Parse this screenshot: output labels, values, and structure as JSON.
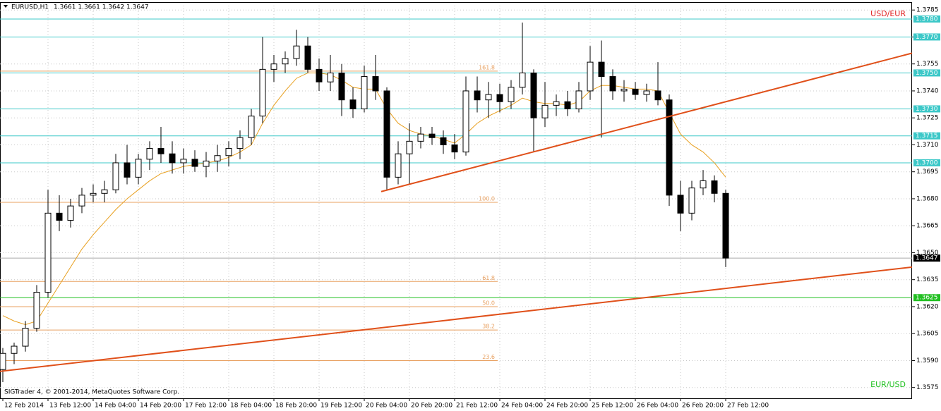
{
  "chart_data": {
    "type": "candlestick",
    "symbol": "EURUSD,H1",
    "ohlc_text": "1.3661 1.3661 1.3642 1.3647",
    "top_right_label": "USD/EUR",
    "bottom_right_label": "EUR/USD",
    "copyright": "SIGTrader 4, © 2001-2014, MetaQuotes Software Corp.",
    "grid": true,
    "xlim": [
      -1,
      322
    ],
    "ylim": [
      1.3569,
      1.3789
    ],
    "xticks": [
      {
        "value": 0,
        "label": "12 Feb 2014"
      },
      {
        "value": 16,
        "label": "13 Feb 12:00"
      },
      {
        "value": 32,
        "label": "14 Feb 04:00"
      },
      {
        "value": 48,
        "label": "14 Feb 20:00"
      },
      {
        "value": 64,
        "label": "17 Feb 12:00"
      },
      {
        "value": 80,
        "label": "18 Feb 04:00"
      },
      {
        "value": 96,
        "label": "18 Feb 20:00"
      },
      {
        "value": 112,
        "label": "19 Feb 12:00"
      },
      {
        "value": 128,
        "label": "20 Feb 04:00"
      },
      {
        "value": 144,
        "label": "20 Feb 20:00"
      },
      {
        "value": 160,
        "label": "21 Feb 12:00"
      },
      {
        "value": 176,
        "label": "24 Feb 04:00"
      },
      {
        "value": 192,
        "label": "24 Feb 20:00"
      },
      {
        "value": 208,
        "label": "25 Feb 12:00"
      },
      {
        "value": 224,
        "label": "26 Feb 04:00"
      },
      {
        "value": 240,
        "label": "26 Feb 20:00"
      },
      {
        "value": 256,
        "label": "27 Feb 12:00"
      }
    ],
    "yticks": [
      1.3785,
      {
        "value": 1.377,
        "label": "1.3770"
      },
      1.3755,
      {
        "value": 1.374,
        "label": "1.3740"
      },
      1.3725,
      {
        "value": 1.371,
        "label": "1.3710"
      },
      1.3695,
      {
        "value": 1.368,
        "label": "1.3680"
      },
      1.3665,
      {
        "value": 1.365,
        "label": "1.3650"
      },
      1.3635,
      {
        "value": 1.362,
        "label": "1.3620"
      },
      1.3605,
      {
        "value": 1.359,
        "label": "1.3590"
      },
      1.3575
    ],
    "x": [
      0,
      4,
      8,
      12,
      16,
      20,
      24,
      28,
      32,
      36,
      40,
      44,
      48,
      52,
      56,
      60,
      64,
      68,
      72,
      76,
      80,
      84,
      88,
      92,
      96,
      100,
      104,
      108,
      112,
      116,
      120,
      124,
      128,
      132,
      136,
      140,
      144,
      148,
      152,
      156,
      160,
      164,
      168,
      172,
      176,
      180,
      184,
      188,
      192,
      196,
      200,
      204,
      208,
      212,
      216,
      220,
      224,
      228,
      232,
      236,
      240,
      244,
      248,
      252,
      256
    ],
    "open": [
      1.3585,
      1.3594,
      1.3598,
      1.3608,
      1.3628,
      1.3672,
      1.3668,
      1.3676,
      1.3682,
      1.3683,
      1.3685,
      1.37,
      1.3692,
      1.3702,
      1.3708,
      1.3705,
      1.37,
      1.3702,
      1.3698,
      1.3701,
      1.3704,
      1.3708,
      1.3714,
      1.3726,
      1.3752,
      1.3755,
      1.3758,
      1.3765,
      1.3752,
      1.3745,
      1.375,
      1.3735,
      1.373,
      1.3748,
      1.374,
      1.3692,
      1.3705,
      1.3712,
      1.3716,
      1.3714,
      1.371,
      1.3706,
      1.374,
      1.3735,
      1.3738,
      1.3734,
      1.3742,
      1.375,
      1.3725,
      1.3732,
      1.3734,
      1.373,
      1.374,
      1.3756,
      1.3748,
      1.374,
      1.3741,
      1.3738,
      1.374,
      1.3735,
      1.3682,
      1.3672,
      1.3686,
      1.369,
      1.3683
    ],
    "high": [
      1.3597,
      1.36,
      1.3612,
      1.3632,
      1.3685,
      1.3682,
      1.368,
      1.3686,
      1.3688,
      1.369,
      1.3705,
      1.371,
      1.3705,
      1.3712,
      1.372,
      1.3712,
      1.3708,
      1.3707,
      1.3706,
      1.371,
      1.3712,
      1.3718,
      1.373,
      1.377,
      1.376,
      1.3762,
      1.3774,
      1.377,
      1.3758,
      1.376,
      1.3755,
      1.3742,
      1.3754,
      1.376,
      1.3742,
      1.3712,
      1.3722,
      1.372,
      1.372,
      1.3718,
      1.3716,
      1.3748,
      1.3748,
      1.3745,
      1.3744,
      1.3746,
      1.3778,
      1.3752,
      1.3745,
      1.3738,
      1.374,
      1.3745,
      1.3765,
      1.3768,
      1.3752,
      1.3746,
      1.3745,
      1.3744,
      1.3756,
      1.3738,
      1.369,
      1.369,
      1.3696,
      1.3693,
      1.3685
    ],
    "low": [
      1.3578,
      1.3588,
      1.3595,
      1.3606,
      1.3625,
      1.3662,
      1.3664,
      1.3672,
      1.3678,
      1.3678,
      1.3683,
      1.3688,
      1.3688,
      1.3696,
      1.37,
      1.3694,
      1.3694,
      1.3695,
      1.3692,
      1.3695,
      1.3698,
      1.3702,
      1.371,
      1.3722,
      1.3745,
      1.375,
      1.3754,
      1.375,
      1.374,
      1.374,
      1.3726,
      1.3725,
      1.3728,
      1.3735,
      1.3685,
      1.3688,
      1.3688,
      1.3708,
      1.371,
      1.3705,
      1.3702,
      1.3704,
      1.3728,
      1.3725,
      1.3728,
      1.373,
      1.3738,
      1.3706,
      1.372,
      1.3726,
      1.3726,
      1.3728,
      1.3735,
      1.3714,
      1.3735,
      1.3734,
      1.3735,
      1.3734,
      1.3732,
      1.3676,
      1.3662,
      1.3668,
      1.3682,
      1.3678,
      1.3642
    ],
    "close": [
      1.3594,
      1.3598,
      1.3608,
      1.3628,
      1.3672,
      1.3668,
      1.3676,
      1.3682,
      1.3683,
      1.3685,
      1.37,
      1.3692,
      1.3702,
      1.3708,
      1.3705,
      1.37,
      1.3702,
      1.3698,
      1.3701,
      1.3704,
      1.3708,
      1.3714,
      1.3726,
      1.3752,
      1.3755,
      1.3758,
      1.3765,
      1.3752,
      1.3745,
      1.375,
      1.3735,
      1.373,
      1.3748,
      1.374,
      1.3692,
      1.3705,
      1.3712,
      1.3716,
      1.3714,
      1.371,
      1.3706,
      1.374,
      1.3735,
      1.3738,
      1.3734,
      1.3742,
      1.375,
      1.3725,
      1.3732,
      1.3734,
      1.373,
      1.374,
      1.3756,
      1.3748,
      1.374,
      1.3741,
      1.3738,
      1.374,
      1.3735,
      1.3682,
      1.3672,
      1.3686,
      1.369,
      1.3683,
      1.3647
    ],
    "moving_average": {
      "color": "#e8a020",
      "values": [
        1.3615,
        1.3612,
        1.361,
        1.3612,
        1.3622,
        1.3632,
        1.3642,
        1.3652,
        1.366,
        1.3667,
        1.3674,
        1.368,
        1.3685,
        1.369,
        1.3694,
        1.3696,
        1.3698,
        1.3699,
        1.37,
        1.3701,
        1.3703,
        1.3706,
        1.371,
        1.3722,
        1.3732,
        1.374,
        1.3747,
        1.375,
        1.375,
        1.3749,
        1.3746,
        1.3742,
        1.3741,
        1.3741,
        1.373,
        1.3722,
        1.3718,
        1.3716,
        1.3715,
        1.3713,
        1.3711,
        1.3716,
        1.3722,
        1.3726,
        1.3729,
        1.3732,
        1.3736,
        1.3734,
        1.3733,
        1.3733,
        1.3732,
        1.3734,
        1.374,
        1.3743,
        1.3743,
        1.3742,
        1.3741,
        1.3741,
        1.374,
        1.3728,
        1.3716,
        1.371,
        1.3706,
        1.37,
        1.3692
      ]
    },
    "levels": [
      {
        "price": 1.378,
        "label": "1.3780",
        "color": "#3cc8c8"
      },
      {
        "price": 1.377,
        "label": "1.3770",
        "color": "#3cc8c8"
      },
      {
        "price": 1.375,
        "label": "1.3750",
        "color": "#3cc8c8"
      },
      {
        "price": 1.373,
        "label": "1.3730",
        "color": "#3cc8c8"
      },
      {
        "price": 1.3715,
        "label": "1.3715",
        "color": "#3cc8c8"
      },
      {
        "price": 1.37,
        "label": "1.3700",
        "color": "#3cc8c8"
      },
      {
        "price": 1.3647,
        "label": "1.3647",
        "color": "#000000"
      },
      {
        "price": 1.3625,
        "label": "1.3625",
        "color": "#22c022"
      }
    ],
    "fib_color": "#e8a060",
    "fib_levels": [
      {
        "label": "161.8",
        "price": 1.3751
      },
      {
        "label": "100.0",
        "price": 1.3678
      },
      {
        "label": "61.8",
        "price": 1.3634
      },
      {
        "label": "50.0",
        "price": 1.362
      },
      {
        "label": "38.2",
        "price": 1.3607
      },
      {
        "label": "23.6",
        "price": 1.359
      }
    ],
    "trendlines": [
      {
        "color": "#e0501a",
        "x": [
          134,
          322
        ],
        "y": [
          1.3684,
          1.3761
        ]
      },
      {
        "color": "#e0501a",
        "x": [
          -1,
          322
        ],
        "y": [
          1.3584,
          1.3642
        ]
      }
    ]
  }
}
